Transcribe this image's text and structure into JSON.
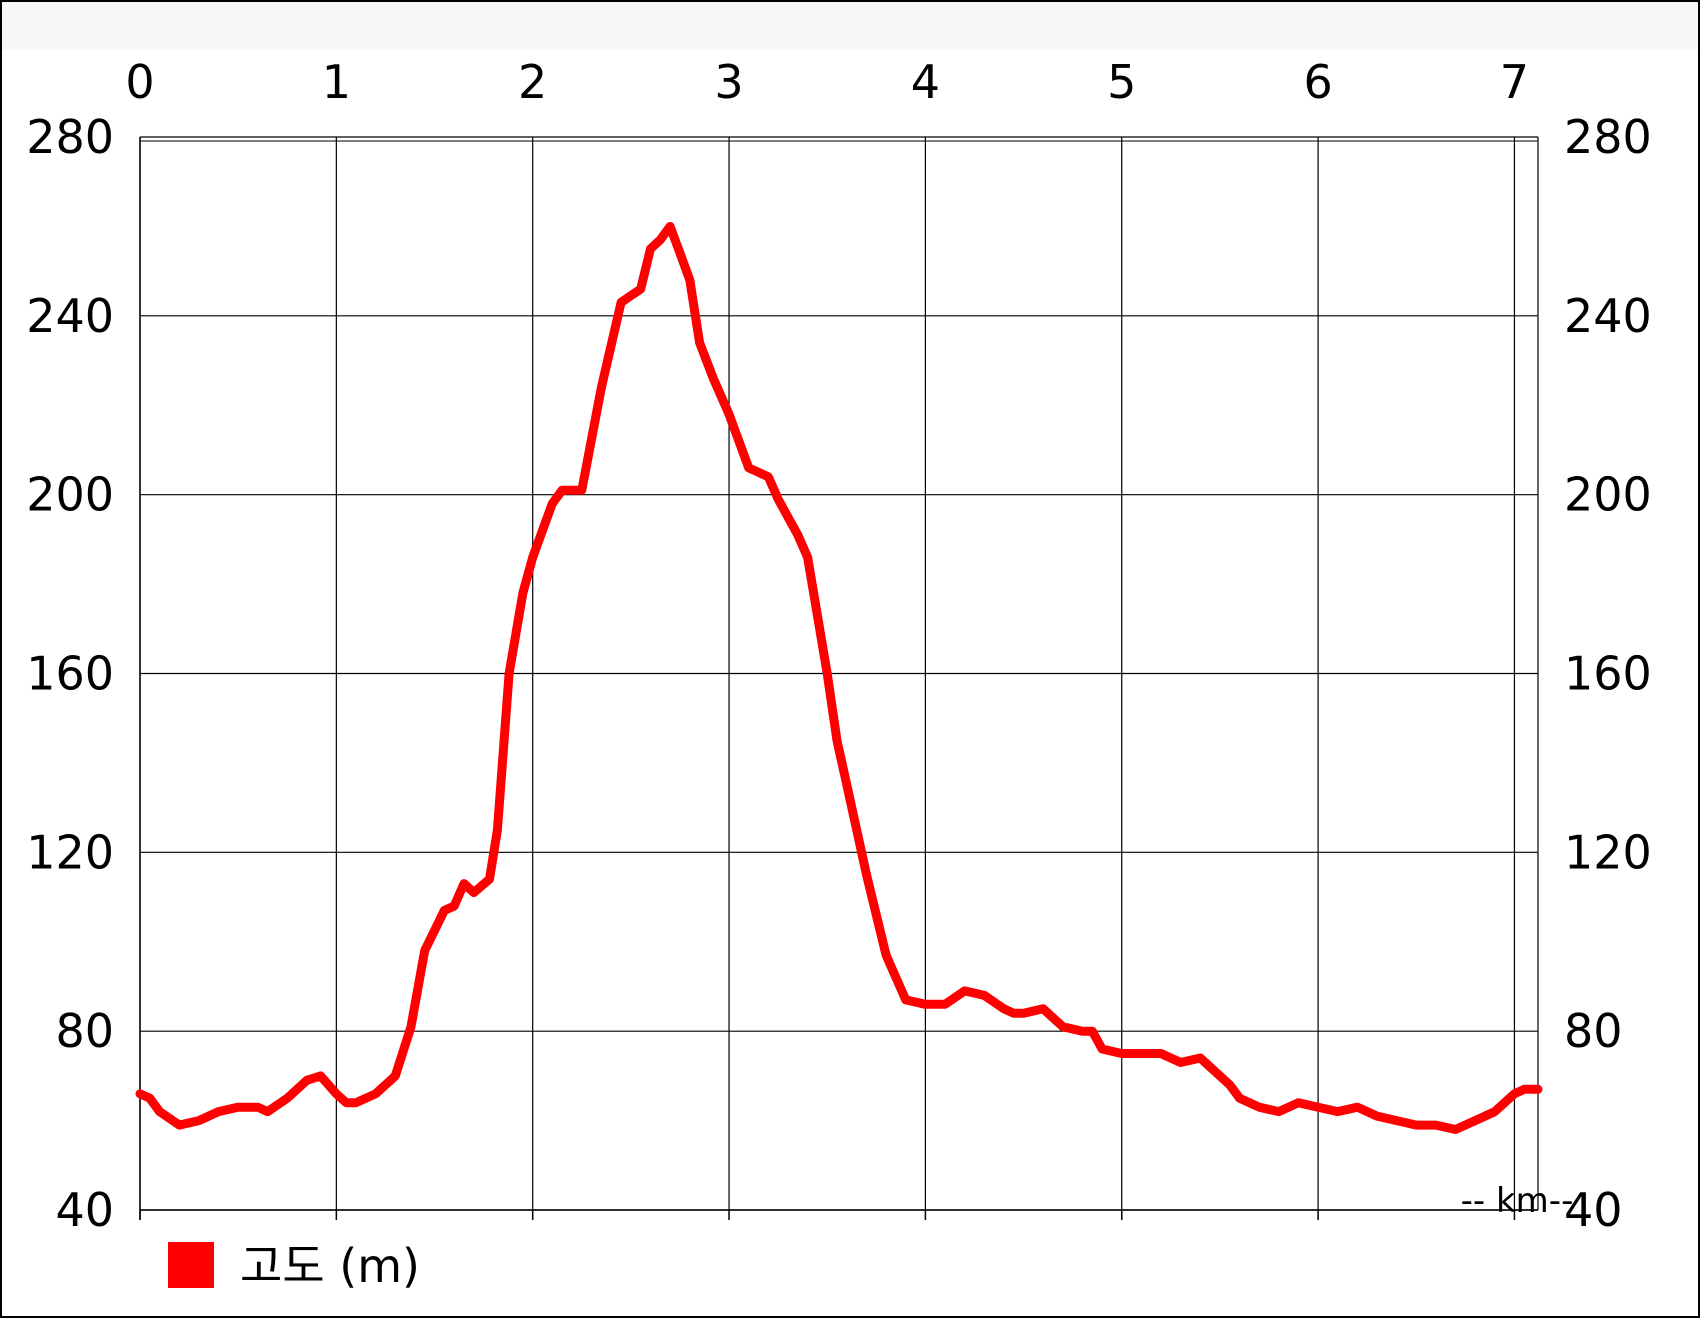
{
  "chart_data": {
    "type": "line",
    "title": "",
    "xlabel": "-- km--",
    "ylabel": "",
    "xlim": [
      0,
      7.12
    ],
    "ylim": [
      40,
      280
    ],
    "x_ticks": [
      "0",
      "1",
      "2",
      "3",
      "4",
      "5",
      "6",
      "7"
    ],
    "y_ticks": [
      "40",
      "80",
      "120",
      "160",
      "200",
      "240",
      "280"
    ],
    "grid": true,
    "legend_position": "bottom-left",
    "series": [
      {
        "name": "고도 (m)",
        "color": "#ff0000",
        "x": [
          0,
          0.05,
          0.1,
          0.2,
          0.3,
          0.4,
          0.5,
          0.6,
          0.65,
          0.75,
          0.85,
          0.92,
          1.0,
          1.05,
          1.1,
          1.2,
          1.3,
          1.38,
          1.45,
          1.55,
          1.6,
          1.65,
          1.7,
          1.78,
          1.82,
          1.88,
          1.95,
          2.0,
          2.05,
          2.1,
          2.15,
          2.25,
          2.35,
          2.45,
          2.55,
          2.6,
          2.65,
          2.7,
          2.75,
          2.8,
          2.85,
          2.92,
          3.0,
          3.1,
          3.2,
          3.25,
          3.3,
          3.35,
          3.4,
          3.5,
          3.55,
          3.6,
          3.7,
          3.8,
          3.85,
          3.9,
          4.0,
          4.1,
          4.2,
          4.3,
          4.4,
          4.45,
          4.5,
          4.6,
          4.7,
          4.8,
          4.85,
          4.9,
          5.0,
          5.1,
          5.2,
          5.3,
          5.4,
          5.5,
          5.55,
          5.6,
          5.7,
          5.8,
          5.9,
          6.0,
          6.1,
          6.2,
          6.3,
          6.4,
          6.5,
          6.6,
          6.7,
          6.8,
          6.9,
          7.0,
          7.05,
          7.12
        ],
        "values": [
          66,
          65,
          62,
          59,
          60,
          62,
          63,
          63,
          62,
          65,
          69,
          70,
          66,
          64,
          64,
          66,
          70,
          81,
          98,
          107,
          108,
          113,
          111,
          114,
          125,
          160,
          178,
          186,
          192,
          198,
          201,
          201,
          224,
          243,
          246,
          255,
          257,
          260,
          254,
          248,
          234,
          226,
          218,
          206,
          204,
          199,
          195,
          191,
          186,
          160,
          145,
          135,
          115,
          97,
          92,
          87,
          86,
          86,
          89,
          88,
          85,
          84,
          84,
          85,
          81,
          80,
          80,
          76,
          75,
          75,
          75,
          73,
          74,
          70,
          68,
          65,
          63,
          62,
          64,
          63,
          62,
          63,
          61,
          60,
          59,
          59,
          58,
          60,
          62,
          66,
          67,
          67
        ]
      }
    ]
  }
}
